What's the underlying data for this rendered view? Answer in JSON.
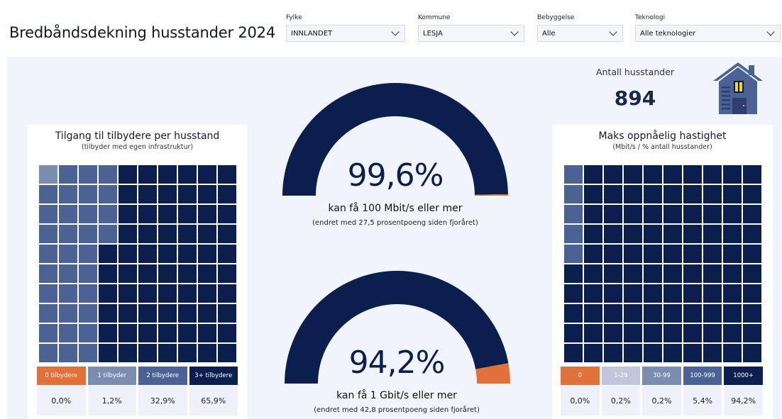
{
  "header": {
    "title": "Bredbåndsdekning husstander 2024"
  },
  "filters": [
    {
      "label": "Fylke",
      "value": "INNLANDET"
    },
    {
      "label": "Kommune",
      "value": "LESJA"
    },
    {
      "label": "Bebyggelse",
      "value": "Alle"
    },
    {
      "label": "Teknologi",
      "value": "Alle teknologier"
    }
  ],
  "colors": {
    "navy": "#0b1f4f",
    "orange": "#e2703a",
    "slate1": "#7a8db0",
    "slate2": "#4c6294",
    "slate3": "#aab6cc",
    "bg": "#f1f4fa"
  },
  "kpi": {
    "label": "Antall husstander",
    "value": "894",
    "icon": "house-icon"
  },
  "providers_panel": {
    "title": "Tilgang til tilbydere per husstand",
    "subtitle": "(tilbyder med egen infrastruktur)",
    "legend": [
      {
        "label": "0 tilbydere",
        "value": "0,0%",
        "color": "#e2703a"
      },
      {
        "label": "1 tilbyder",
        "value": "1,2%",
        "color": "#7a8db0"
      },
      {
        "label": "2 tilbydere",
        "value": "32,9%",
        "color": "#4c6294"
      },
      {
        "label": "3+ tilbydere",
        "value": "65,9%",
        "color": "#0b1f4f"
      }
    ]
  },
  "speed_panel": {
    "title": "Maks oppnåelig hastighet",
    "subtitle": "(Mbit/s / % antall husstander)",
    "legend": [
      {
        "label": "0",
        "value": "0,0%",
        "color": "#e2703a"
      },
      {
        "label": "1-29",
        "value": "0,2%",
        "color": "#bfc7d8"
      },
      {
        "label": "30-99",
        "value": "0,2%",
        "color": "#7a8db0"
      },
      {
        "label": "100-999",
        "value": "5,4%",
        "color": "#4c6294"
      },
      {
        "label": "1000+",
        "value": "94,2%",
        "color": "#0b1f4f"
      }
    ]
  },
  "gauges": [
    {
      "value_text": "99,6%",
      "fraction": 0.996,
      "text": "kan få 100 Mbit/s eller mer",
      "sub": "(endret med 27,5 prosentpoeng siden fjoråret)"
    },
    {
      "value_text": "94,2%",
      "fraction": 0.942,
      "text": "kan få 1 Gbit/s eller mer",
      "sub": "(endret med 42,8 prosentpoeng siden fjoråret)"
    }
  ],
  "chart_data": [
    {
      "type": "waffle",
      "title": "Tilgang til tilbydere per husstand",
      "categories": [
        "0 tilbydere",
        "1 tilbyder",
        "2 tilbydere",
        "3+ tilbydere"
      ],
      "values": [
        0.0,
        1.2,
        32.9,
        65.9
      ]
    },
    {
      "type": "waffle",
      "title": "Maks oppnåelig hastighet",
      "categories": [
        "0",
        "1-29",
        "30-99",
        "100-999",
        "1000+"
      ],
      "values": [
        0.0,
        0.2,
        0.2,
        5.4,
        94.2
      ]
    },
    {
      "type": "gauge",
      "categories": [
        "kan få 100 Mbit/s eller mer"
      ],
      "values": [
        99.6
      ]
    },
    {
      "type": "gauge",
      "categories": [
        "kan få 1 Gbit/s eller mer"
      ],
      "values": [
        94.2
      ]
    }
  ]
}
